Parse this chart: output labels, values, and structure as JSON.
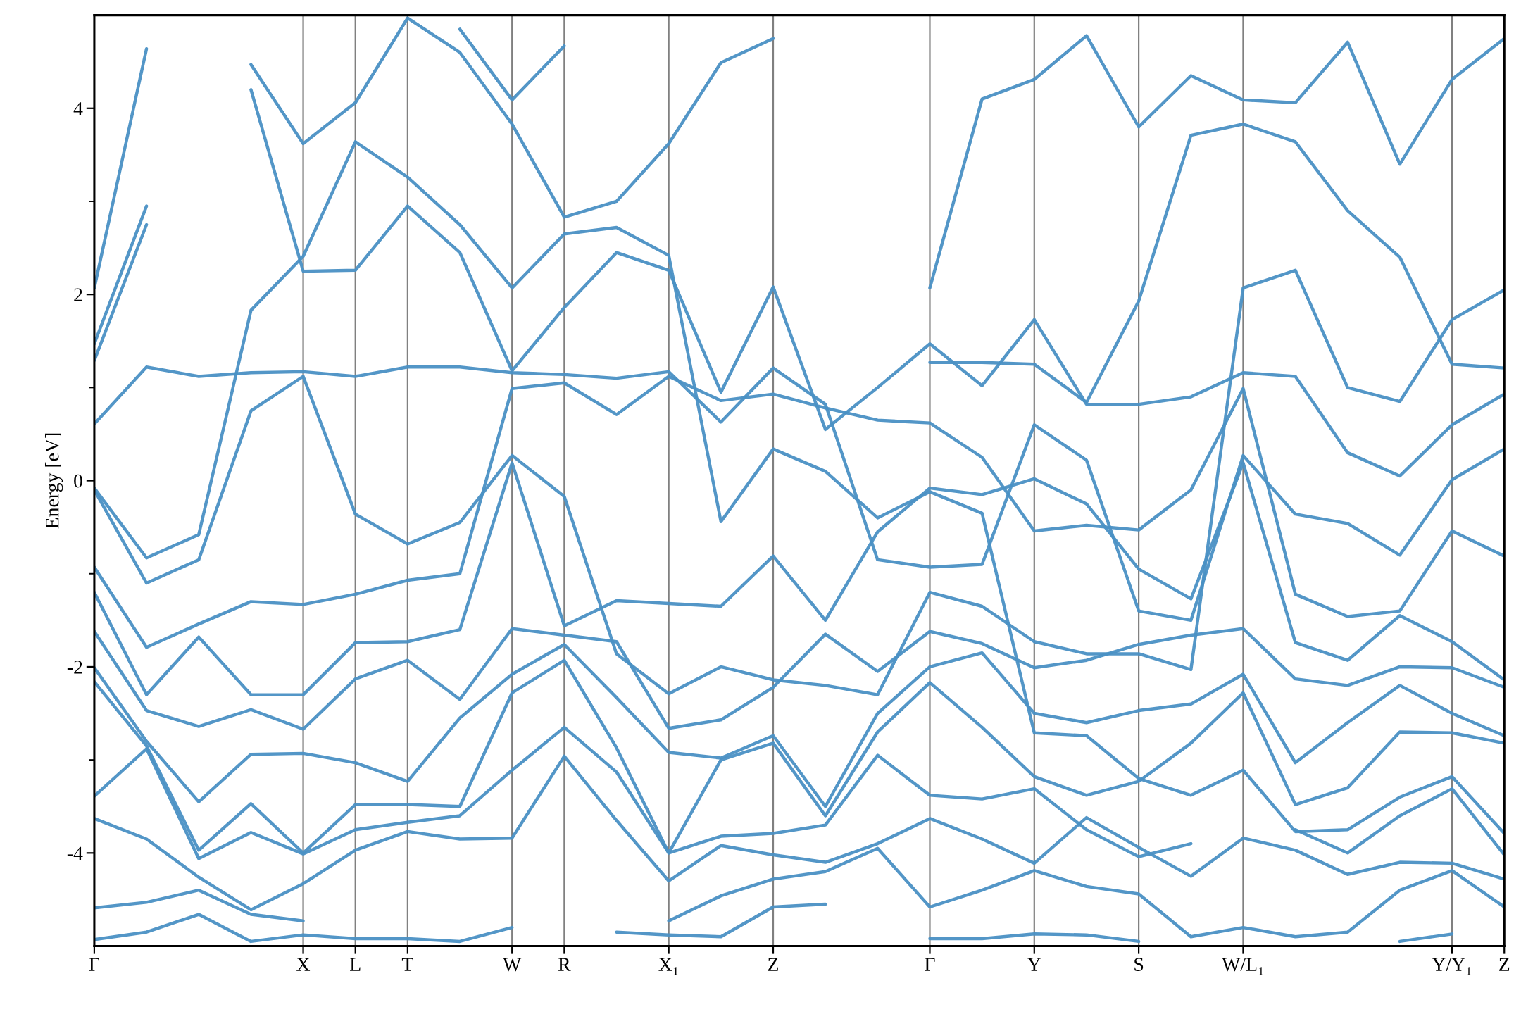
{
  "chart_data": {
    "type": "line",
    "ylabel": "Energy [eV]",
    "categories": [
      "Γ",
      null,
      null,
      null,
      "X",
      "L",
      "T",
      null,
      "W",
      "R",
      null,
      "X₁",
      null,
      "Z",
      null,
      null,
      "Γ",
      null,
      "Y",
      null,
      "S",
      null,
      "W/L₁",
      null,
      null,
      null,
      "Y/Y₁",
      "Z"
    ],
    "ylim": [
      -5,
      5
    ],
    "yticks": [
      -4,
      {
        "value": -3,
        "label": null
      },
      -2,
      {
        "value": -1,
        "label": null
      },
      0,
      {
        "value": 1,
        "label": null
      },
      2,
      {
        "value": 3,
        "label": null
      },
      4
    ],
    "grid": "x",
    "line_style": "solid",
    "series": [
      {
        "color": "#4a90c4",
        "values": [
          -4.93,
          -4.85,
          -4.66,
          -4.95,
          -4.88,
          -4.92,
          -4.92,
          -4.95,
          -4.8,
          null,
          -4.85,
          -4.88,
          -4.9,
          -4.58,
          -4.55,
          null,
          -4.92,
          -4.92,
          -4.87,
          -4.88,
          -4.95,
          null,
          null,
          null,
          null,
          -4.95,
          -4.87,
          null
        ]
      },
      {
        "color": "#4a90c4",
        "values": [
          -4.59,
          -4.53,
          -4.4,
          -4.66,
          -4.73,
          null,
          null,
          null,
          null,
          null,
          null,
          -4.73,
          -4.46,
          -4.28,
          -4.2,
          -3.95,
          -4.58,
          -4.4,
          -4.19,
          -4.36,
          -4.44,
          -4.9,
          -4.8,
          -4.9,
          -4.85,
          -4.4,
          -4.19,
          -4.58
        ]
      },
      {
        "color": "#4a90c4",
        "values": [
          -3.63,
          -3.85,
          -4.26,
          -4.61,
          -4.33,
          -3.97,
          -3.77,
          -3.85,
          -3.84,
          -2.96,
          -3.65,
          -4.3,
          -3.92,
          -4.02,
          -4.1,
          -3.9,
          -3.63,
          -3.85,
          -4.11,
          -3.62,
          -3.94,
          -4.25,
          -3.84,
          -3.97,
          -4.23,
          -4.1,
          -4.11,
          -4.28
        ]
      },
      {
        "color": "#4a90c4",
        "values": [
          -3.39,
          -2.88,
          -4.06,
          -3.78,
          -4.01,
          -3.75,
          -3.67,
          -3.6,
          -3.11,
          -2.65,
          -3.13,
          -4.0,
          -3.82,
          -3.79,
          -3.7,
          -2.95,
          -3.38,
          -3.42,
          -3.31,
          -3.75,
          -4.04,
          -3.9,
          null,
          -3.75,
          -4.0,
          -3.6,
          -3.31,
          -4.02
        ]
      },
      {
        "color": "#4a90c4",
        "values": [
          -2.16,
          -2.85,
          -3.97,
          -3.47,
          -4.0,
          -3.48,
          -3.48,
          -3.5,
          -2.28,
          -1.93,
          -2.87,
          -4.0,
          -3.0,
          -2.82,
          -3.6,
          -2.7,
          -2.17,
          -2.65,
          -3.18,
          -3.38,
          -3.23,
          -2.82,
          -2.28,
          -3.48,
          -3.3,
          -2.7,
          -2.71,
          -2.82
        ]
      },
      {
        "color": "#4a90c4",
        "values": [
          -2.01,
          -2.8,
          -3.45,
          -2.94,
          -2.93,
          -3.03,
          -3.23,
          -2.55,
          -2.08,
          -1.76,
          -2.33,
          -2.92,
          -2.98,
          -2.74,
          -3.5,
          -2.5,
          -2.0,
          -1.85,
          -2.5,
          -2.6,
          -2.47,
          -2.4,
          -2.08,
          -3.03,
          -2.6,
          -2.2,
          -2.5,
          -2.74
        ]
      },
      {
        "color": "#4a90c4",
        "values": [
          -1.62,
          -2.47,
          -2.64,
          -2.46,
          -2.67,
          -2.13,
          -1.93,
          -2.35,
          -1.59,
          -1.66,
          -1.73,
          -2.66,
          -2.57,
          -2.22,
          -1.65,
          -2.05,
          -1.62,
          -1.75,
          -2.01,
          -1.93,
          -1.76,
          -1.66,
          -1.59,
          -2.13,
          -2.2,
          -2.0,
          -2.01,
          -2.22
        ]
      },
      {
        "color": "#4a90c4",
        "values": [
          -1.2,
          -2.3,
          -1.68,
          -2.3,
          -2.3,
          -1.74,
          -1.73,
          -1.6,
          0.19,
          -1.56,
          -1.29,
          -1.32,
          -1.35,
          -0.81,
          -1.5,
          -0.55,
          -0.08,
          -0.15,
          0.02,
          -0.25,
          -0.95,
          -1.27,
          0.19,
          -1.74,
          -1.93,
          -1.45,
          -1.73,
          -2.14
        ]
      },
      {
        "color": "#4a90c4",
        "values": [
          -0.93,
          -1.79,
          -1.54,
          -1.3,
          -1.33,
          -1.22,
          -1.07,
          -1.0,
          0.99,
          1.05,
          0.71,
          1.12,
          0.86,
          0.93,
          0.78,
          0.65,
          0.62,
          0.25,
          -0.54,
          -0.48,
          -0.53,
          -0.1,
          0.99,
          -1.22,
          -1.46,
          -1.4,
          -0.54,
          -0.81
        ]
      },
      {
        "color": "#4a90c4",
        "values": [
          -0.1,
          -1.1,
          -0.85,
          0.75,
          1.12,
          -0.36,
          -0.68,
          -0.45,
          0.27,
          -0.17,
          -1.86,
          -2.29,
          -2.0,
          -2.14,
          -2.2,
          -2.3,
          -1.2,
          -1.35,
          -1.73,
          -1.86,
          -1.86,
          -2.03,
          2.07,
          2.26,
          1.0,
          0.85,
          1.73,
          2.05
        ]
      },
      {
        "color": "#4a90c4",
        "values": [
          -0.08,
          -0.83,
          -0.58,
          1.83,
          2.41,
          3.64,
          3.26,
          2.75,
          2.07,
          2.65,
          2.72,
          2.42,
          -0.44,
          0.34,
          0.1,
          -0.4,
          -0.12,
          -0.35,
          -2.71,
          -2.74,
          -3.2,
          -3.38,
          -3.11,
          -3.77,
          -3.75,
          -3.4,
          -3.18,
          -3.79
        ]
      },
      {
        "color": "#4a90c4",
        "values": [
          0.61,
          1.22,
          1.12,
          1.16,
          1.17,
          1.12,
          1.22,
          1.22,
          1.16,
          1.14,
          1.1,
          1.17,
          0.63,
          1.21,
          0.82,
          -0.85,
          -0.93,
          -0.9,
          0.6,
          0.22,
          -1.4,
          -1.5,
          0.27,
          -0.36,
          -0.46,
          -0.8,
          0.01,
          0.34
        ]
      },
      {
        "color": "#4a90c4",
        "values": [
          1.29,
          2.75,
          null,
          4.2,
          2.25,
          2.26,
          2.95,
          2.45,
          1.18,
          1.86,
          2.45,
          2.26,
          0.95,
          2.08,
          0.55,
          1.0,
          1.47,
          1.02,
          1.73,
          0.82,
          0.82,
          0.9,
          1.16,
          1.12,
          0.3,
          0.05,
          0.6,
          0.93
        ]
      },
      {
        "color": "#4a90c4",
        "values": [
          1.47,
          2.95,
          null,
          4.47,
          3.62,
          4.06,
          4.97,
          4.6,
          3.83,
          2.83,
          3.0,
          3.62,
          4.49,
          4.75,
          null,
          null,
          1.27,
          1.27,
          1.25,
          0.84,
          1.93,
          3.71,
          3.83,
          3.64,
          2.9,
          2.4,
          1.25,
          1.21
        ]
      },
      {
        "color": "#4a90c4",
        "values": [
          2.07,
          4.64,
          null,
          null,
          null,
          null,
          null,
          4.85,
          4.09,
          4.67,
          null,
          null,
          null,
          null,
          null,
          null,
          2.07,
          4.1,
          4.31,
          4.78,
          3.8,
          4.35,
          4.09,
          4.06,
          4.71,
          3.4,
          4.31,
          4.75
        ]
      }
    ]
  }
}
